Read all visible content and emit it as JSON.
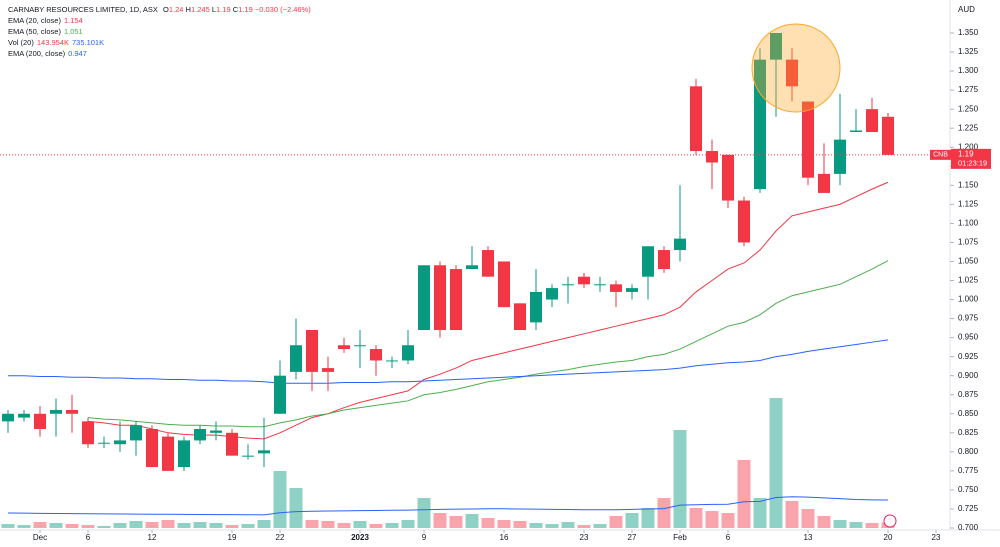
{
  "chart_data": {
    "type": "candlestick",
    "title": "CARNABY RESOURCES LIMITED, 1D, ASX",
    "ohlc_letters": [
      "O",
      "H",
      "L",
      "C"
    ],
    "change_label": "−0.030 (−2.46%)",
    "currency": "AUD",
    "symbol": "CNB",
    "countdown": "01:23:19",
    "up_color": "#089981",
    "down_color": "#f23645",
    "candles": {
      "open": [
        0.84,
        0.845,
        0.85,
        0.85,
        0.855,
        0.84,
        0.812,
        0.81,
        0.815,
        0.83,
        0.82,
        0.78,
        0.815,
        0.825,
        0.825,
        0.795,
        0.798,
        0.85,
        0.905,
        0.96,
        0.91,
        0.94,
        0.94,
        0.935,
        0.92,
        0.92,
        0.96,
        1.045,
        1.04,
        1.04,
        1.065,
        1.05,
        0.995,
        0.97,
        1.0,
        1.02,
        1.03,
        1.02,
        1.02,
        1.01,
        1.03,
        1.065,
        1.065,
        1.28,
        1.195,
        1.19,
        1.13,
        1.145,
        1.315,
        1.315,
        1.26,
        1.165,
        1.165,
        1.22,
        1.25,
        1.24
      ],
      "high": [
        0.855,
        0.855,
        0.86,
        0.87,
        0.875,
        0.845,
        0.82,
        0.84,
        0.84,
        0.835,
        0.825,
        0.82,
        0.835,
        0.84,
        0.83,
        0.81,
        0.845,
        0.92,
        0.975,
        0.96,
        0.925,
        0.95,
        0.96,
        0.94,
        0.925,
        0.96,
        1.045,
        1.05,
        1.045,
        1.07,
        1.07,
        1.05,
        0.995,
        1.04,
        1.02,
        1.03,
        1.035,
        1.03,
        1.025,
        1.02,
        1.07,
        1.07,
        1.15,
        1.29,
        1.21,
        1.19,
        1.135,
        1.33,
        1.35,
        1.33,
        1.26,
        1.205,
        1.27,
        1.25,
        1.265,
        1.245
      ],
      "low": [
        0.825,
        0.84,
        0.82,
        0.82,
        0.825,
        0.805,
        0.805,
        0.8,
        0.795,
        0.78,
        0.775,
        0.775,
        0.81,
        0.815,
        0.795,
        0.79,
        0.78,
        0.85,
        0.895,
        0.88,
        0.88,
        0.93,
        0.91,
        0.9,
        0.91,
        0.915,
        0.96,
        0.95,
        0.96,
        1.04,
        1.03,
        0.99,
        0.96,
        0.96,
        0.99,
        0.995,
        1.015,
        1.01,
        0.99,
        1.0,
        1.0,
        1.035,
        1.05,
        1.19,
        1.145,
        1.12,
        1.07,
        1.14,
        1.24,
        1.26,
        1.15,
        1.14,
        1.15,
        1.22,
        1.22,
        1.19
      ],
      "close": [
        0.85,
        0.85,
        0.83,
        0.855,
        0.85,
        0.81,
        0.812,
        0.815,
        0.835,
        0.78,
        0.775,
        0.815,
        0.83,
        0.828,
        0.795,
        0.795,
        0.802,
        0.9,
        0.94,
        0.905,
        0.905,
        0.935,
        0.94,
        0.92,
        0.92,
        0.94,
        1.045,
        0.96,
        0.96,
        1.045,
        1.03,
        0.99,
        0.96,
        1.01,
        1.015,
        1.02,
        1.02,
        1.02,
        1.01,
        1.015,
        1.07,
        1.04,
        1.08,
        1.195,
        1.18,
        1.13,
        1.075,
        1.315,
        1.35,
        1.28,
        1.16,
        1.14,
        1.21,
        1.222,
        1.22,
        1.19
      ]
    },
    "series": [
      {
        "name": "EMA (20, close)",
        "color": "#f23645",
        "values": [
          null,
          null,
          null,
          null,
          null,
          0.84,
          0.838,
          0.835,
          0.835,
          0.83,
          0.825,
          0.823,
          0.822,
          0.822,
          0.82,
          0.818,
          0.817,
          0.825,
          0.835,
          0.845,
          0.85,
          0.858,
          0.865,
          0.87,
          0.875,
          0.88,
          0.895,
          0.902,
          0.91,
          0.92,
          0.925,
          0.93,
          0.935,
          0.94,
          0.945,
          0.95,
          0.955,
          0.96,
          0.965,
          0.97,
          0.975,
          0.98,
          0.99,
          1.01,
          1.025,
          1.04,
          1.048,
          1.065,
          1.09,
          1.11,
          1.115,
          1.12,
          1.125,
          1.135,
          1.145,
          1.154
        ]
      },
      {
        "name": "EMA (50, close)",
        "color": "#4caf50",
        "values": [
          null,
          null,
          null,
          null,
          null,
          0.845,
          0.843,
          0.842,
          0.84,
          0.838,
          0.836,
          0.835,
          0.835,
          0.834,
          0.834,
          0.833,
          0.833,
          0.838,
          0.842,
          0.847,
          0.85,
          0.855,
          0.858,
          0.861,
          0.864,
          0.867,
          0.875,
          0.878,
          0.882,
          0.887,
          0.892,
          0.895,
          0.898,
          0.902,
          0.905,
          0.908,
          0.912,
          0.915,
          0.918,
          0.92,
          0.925,
          0.928,
          0.935,
          0.945,
          0.955,
          0.965,
          0.97,
          0.98,
          0.995,
          1.005,
          1.01,
          1.015,
          1.02,
          1.03,
          1.04,
          1.051
        ]
      },
      {
        "name": "EMA (200, close)",
        "color": "#2962ff",
        "values": [
          0.9,
          0.9,
          0.899,
          0.899,
          0.898,
          0.898,
          0.897,
          0.897,
          0.896,
          0.896,
          0.895,
          0.895,
          0.894,
          0.894,
          0.893,
          0.893,
          0.892,
          0.89,
          0.89,
          0.89,
          0.89,
          0.891,
          0.891,
          0.891,
          0.892,
          0.892,
          0.893,
          0.894,
          0.895,
          0.896,
          0.897,
          0.898,
          0.899,
          0.9,
          0.901,
          0.902,
          0.903,
          0.904,
          0.905,
          0.906,
          0.907,
          0.908,
          0.91,
          0.913,
          0.915,
          0.917,
          0.918,
          0.92,
          0.925,
          0.928,
          0.932,
          0.935,
          0.938,
          0.941,
          0.944,
          0.947
        ]
      }
    ],
    "volume": {
      "name": "Vol (20)",
      "values": [
        105000,
        79000,
        158000,
        131000,
        105000,
        79000,
        53000,
        131000,
        184000,
        158000,
        210000,
        131000,
        158000,
        131000,
        79000,
        105000,
        210000,
        1497000,
        1051000,
        210000,
        184000,
        131000,
        184000,
        105000,
        131000,
        210000,
        788000,
        394000,
        315000,
        368000,
        263000,
        210000,
        184000,
        131000,
        105000,
        158000,
        79000,
        105000,
        315000,
        394000,
        525000,
        788000,
        2574000,
        525000,
        446000,
        394000,
        1786000,
        788000,
        3414000,
        709000,
        499000,
        315000,
        210000,
        158000,
        131000,
        143954
      ],
      "value_label": "143.954K",
      "vlim": [
        0,
        13000000
      ],
      "ma": {
        "color": "#2962ff",
        "values": [
          394000,
          390000,
          385000,
          380000,
          378000,
          375000,
          370000,
          368000,
          365000,
          362000,
          360000,
          358000,
          355000,
          352000,
          350000,
          348000,
          345000,
          400000,
          430000,
          440000,
          445000,
          450000,
          455000,
          460000,
          465000,
          470000,
          480000,
          490000,
          495000,
          500000,
          505000,
          505000,
          500000,
          495000,
          490000,
          485000,
          480000,
          478000,
          480000,
          490000,
          500000,
          510000,
          600000,
          610000,
          620000,
          625000,
          690000,
          700000,
          800000,
          820000,
          810000,
          790000,
          770000,
          750000,
          740000,
          735101
        ],
        "value_label": "735.101K"
      }
    },
    "xlim": [
      -0.5,
      58.875
    ],
    "xticks": [
      {
        "value": 2,
        "label": "Dec"
      },
      {
        "value": 5,
        "label": "6"
      },
      {
        "value": 9,
        "label": "12"
      },
      {
        "value": 14,
        "label": "19"
      },
      {
        "value": 17,
        "label": "22"
      },
      {
        "value": 22,
        "label": "2023"
      },
      {
        "value": 26,
        "label": "9"
      },
      {
        "value": 31,
        "label": "16"
      },
      {
        "value": 36,
        "label": "23"
      },
      {
        "value": 39,
        "label": "27"
      },
      {
        "value": 42,
        "label": "Feb"
      },
      {
        "value": 45,
        "label": "6"
      },
      {
        "value": 50,
        "label": "13"
      },
      {
        "value": 55,
        "label": "20"
      },
      {
        "value": 58,
        "label": "23"
      }
    ],
    "ylim": [
      0.7,
      1.35
    ],
    "yticks": [
      {
        "value": 0.7,
        "label": "0.700"
      },
      {
        "value": 0.725,
        "label": "0.725"
      },
      {
        "value": 0.75,
        "label": "0.750"
      },
      {
        "value": 0.775,
        "label": "0.775"
      },
      {
        "value": 0.8,
        "label": "0.800"
      },
      {
        "value": 0.825,
        "label": "0.825"
      },
      {
        "value": 0.85,
        "label": "0.850"
      },
      {
        "value": 0.875,
        "label": "0.875"
      },
      {
        "value": 0.9,
        "label": "0.900"
      },
      {
        "value": 0.925,
        "label": "0.925"
      },
      {
        "value": 0.95,
        "label": "0.950"
      },
      {
        "value": 0.975,
        "label": "0.975"
      },
      {
        "value": 1.0,
        "label": "1.000"
      },
      {
        "value": 1.025,
        "label": "1.025"
      },
      {
        "value": 1.05,
        "label": "1.050"
      },
      {
        "value": 1.075,
        "label": "1.075"
      },
      {
        "value": 1.1,
        "label": "1.100"
      },
      {
        "value": 1.125,
        "label": "1.125"
      },
      {
        "value": 1.15,
        "label": "1.150"
      },
      {
        "value": 1.175,
        "label": "1.175"
      },
      {
        "value": 1.2,
        "label": "1.200"
      },
      {
        "value": 1.225,
        "label": "1.225"
      },
      {
        "value": 1.25,
        "label": "1.250"
      },
      {
        "value": 1.275,
        "label": "1.275"
      },
      {
        "value": 1.3,
        "label": "1.300"
      },
      {
        "value": 1.325,
        "label": "1.325"
      },
      {
        "value": 1.35,
        "label": "1.350"
      }
    ]
  }
}
